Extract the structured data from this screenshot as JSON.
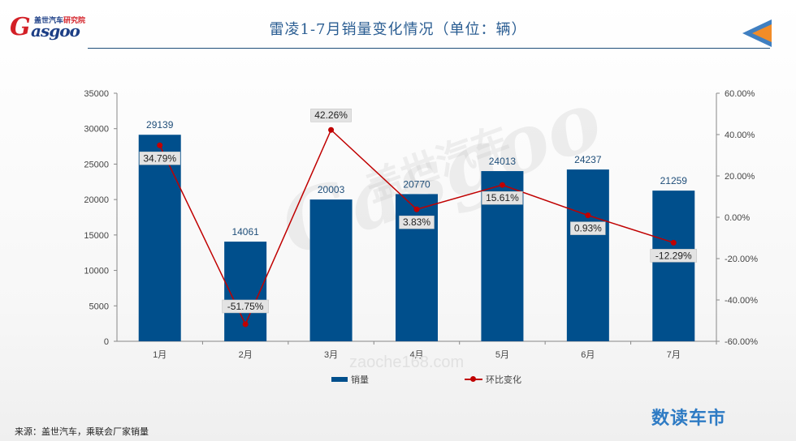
{
  "header": {
    "title": "雷凌1-7月销量变化情况（单位：辆）",
    "logo_letter": "G",
    "logo_text": "asgoo",
    "logo_sub_main": "盖世汽车",
    "logo_sub_accent": "研究院"
  },
  "watermarks": {
    "url": "zaoche168.com",
    "brand_latin": "Gasgoo",
    "brand_cn": "盖世汽车"
  },
  "footer": {
    "brand": "数读车市",
    "source": "来源：盖世汽车，乘联会厂家销量"
  },
  "colors": {
    "bar": "#004f8c",
    "line": "#c00000",
    "title": "#2a5d92"
  },
  "chart_data": {
    "type": "bar",
    "categories": [
      "1月",
      "2月",
      "3月",
      "4月",
      "5月",
      "6月",
      "7月"
    ],
    "series": [
      {
        "name": "销量",
        "type": "bar",
        "axis": "left",
        "values": [
          29139,
          14061,
          20003,
          20770,
          24013,
          24237,
          21259
        ],
        "labels": [
          "29139",
          "14061",
          "20003",
          "20770",
          "24013",
          "24237",
          "21259"
        ]
      },
      {
        "name": "环比变化",
        "type": "line",
        "axis": "right",
        "values": [
          34.79,
          -51.75,
          42.26,
          3.83,
          15.61,
          0.93,
          -12.29
        ],
        "labels": [
          "34.79%",
          "-51.75%",
          "42.26%",
          "3.83%",
          "15.61%",
          "0.93%",
          "-12.29%"
        ]
      }
    ],
    "left_axis": {
      "ylim": [
        0,
        35000
      ],
      "ticks": [
        0,
        5000,
        10000,
        15000,
        20000,
        25000,
        30000,
        35000
      ],
      "tick_labels": [
        "0",
        "5000",
        "10000",
        "15000",
        "20000",
        "25000",
        "30000",
        "35000"
      ]
    },
    "right_axis": {
      "ylim": [
        -60,
        60
      ],
      "ticks": [
        -60,
        -40,
        -20,
        0,
        20,
        40,
        60
      ],
      "tick_labels": [
        "-60.00%",
        "-40.00%",
        "-20.00%",
        "0.00%",
        "20.00%",
        "40.00%",
        "60.00%"
      ]
    },
    "legend_position": "bottom"
  }
}
